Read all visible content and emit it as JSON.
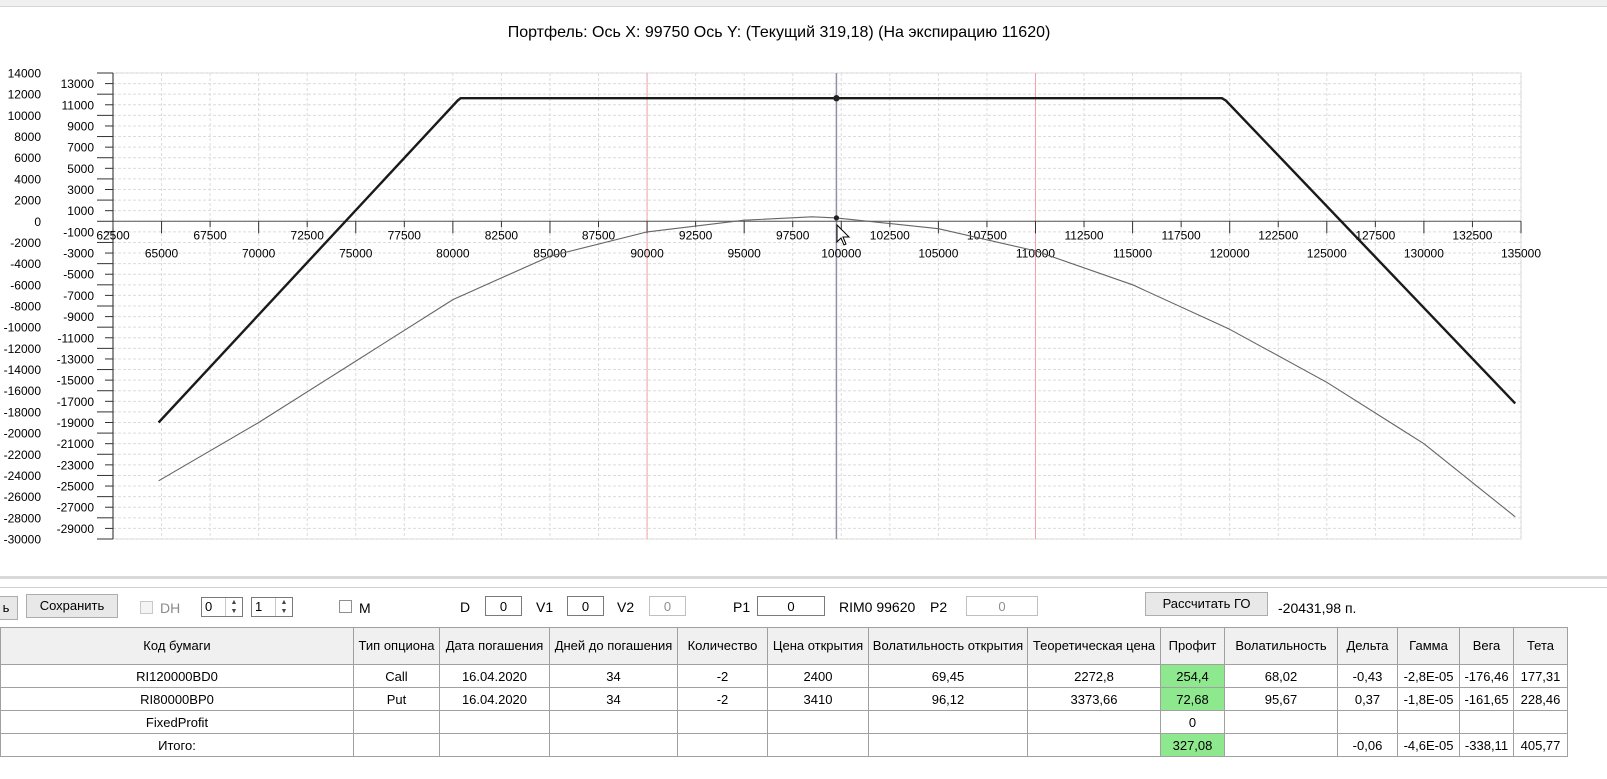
{
  "window": {
    "title": "Портфель: Ось X: 99750 Ось Y:  (Текущий 319,18)  (На экспирацию 11620)"
  },
  "chart_data": {
    "type": "line",
    "title": "Портфель: Ось X: 99750 Ось Y:  (Текущий 319,18)  (На экспирацию 11620)",
    "xlim": [
      62500,
      135000
    ],
    "ylim": [
      -30000,
      14000
    ],
    "x_ticks_upper": [
      62500,
      67500,
      72500,
      77500,
      82500,
      87500,
      92500,
      97500,
      102500,
      107500,
      112500,
      117500,
      122500,
      127500,
      132500
    ],
    "x_ticks_lower": [
      65000,
      70000,
      75000,
      80000,
      85000,
      90000,
      95000,
      100000,
      105000,
      110000,
      115000,
      120000,
      125000,
      130000,
      135000
    ],
    "y_ticks_left": [
      14000,
      12000,
      10000,
      8000,
      6000,
      4000,
      2000,
      0,
      -2000,
      -4000,
      -6000,
      -8000,
      -10000,
      -12000,
      -14000,
      -16000,
      -18000,
      -20000,
      -22000,
      -24000,
      -26000,
      -28000,
      -30000
    ],
    "y_ticks_right": [
      13000,
      11000,
      9000,
      7000,
      5000,
      3000,
      1000,
      -1000,
      -3000,
      -5000,
      -7000,
      -9000,
      -11000,
      -13000,
      -15000,
      -17000,
      -19000,
      -21000,
      -23000,
      -25000,
      -27000,
      -29000
    ],
    "grid": true,
    "cursor_x": 99750,
    "marker_lines_x": [
      90000,
      110000
    ],
    "series": [
      {
        "style": "thick",
        "color": "#1a1a1a",
        "points": [
          [
            64850,
            -19000
          ],
          [
            80250,
            11400
          ],
          [
            80400,
            11620
          ],
          [
            119600,
            11620
          ],
          [
            119800,
            11400
          ],
          [
            134700,
            -17200
          ]
        ],
        "marker": [
          99750,
          11620
        ]
      },
      {
        "style": "thin",
        "color": "#666666",
        "points": [
          [
            64850,
            -24500
          ],
          [
            70000,
            -19000
          ],
          [
            75000,
            -13200
          ],
          [
            80000,
            -7400
          ],
          [
            85000,
            -3300
          ],
          [
            90000,
            -1000
          ],
          [
            95000,
            100
          ],
          [
            98500,
            420
          ],
          [
            99750,
            319
          ],
          [
            105000,
            -700
          ],
          [
            110000,
            -2800
          ],
          [
            115000,
            -6000
          ],
          [
            120000,
            -10200
          ],
          [
            125000,
            -15200
          ],
          [
            130000,
            -21000
          ],
          [
            134700,
            -27900
          ]
        ],
        "marker": [
          99750,
          319
        ]
      }
    ]
  },
  "toolbar": {
    "cut_label": "ь",
    "save_label": "Сохранить",
    "dh_label": "DH",
    "spin1_value": "0",
    "spin2_value": "1",
    "m_label": "M",
    "d_label": "D",
    "d_value": "0",
    "v1_label": "V1",
    "v1_value": "0",
    "v2_label": "V2",
    "v2_value": "0",
    "p1_label": "P1",
    "p1_value": "0",
    "rim_label": "RIM0 99620",
    "p2_label": "P2",
    "p2_value": "0",
    "calc_label": "Рассчитать ГО",
    "go_value": "-20431,98 п."
  },
  "table": {
    "headers": [
      "Код бумаги",
      "Тип опциона",
      "Дата погашения",
      "Дней до погашения",
      "Количество",
      "Цена открытия",
      "Волатильность открытия",
      "Теоретическая цена",
      "Профит",
      "Волатильность",
      "Дельта",
      "Гамма",
      "Вега",
      "Тета"
    ],
    "rows": [
      [
        "RI120000BD0",
        "Call",
        "16.04.2020",
        "34",
        "-2",
        "2400",
        "69,45",
        "2272,8",
        "254,4",
        "68,02",
        "-0,43",
        "-2,8E-05",
        "-176,46",
        "177,31"
      ],
      [
        "RI80000BP0",
        "Put",
        "16.04.2020",
        "34",
        "-2",
        "3410",
        "96,12",
        "3373,66",
        "72,68",
        "95,67",
        "0,37",
        "-1,8E-05",
        "-161,65",
        "228,46"
      ],
      [
        "FixedProfit",
        "",
        "",
        "",
        "",
        "",
        "",
        "",
        "0",
        "",
        "",
        "",
        "",
        ""
      ],
      [
        "Итого:",
        "",
        "",
        "",
        "",
        "",
        "",
        "",
        "327,08",
        "",
        "-0,06",
        "-4,6E-05",
        "-338,11",
        "405,77"
      ]
    ],
    "highlight_color": "#8ee88e"
  }
}
